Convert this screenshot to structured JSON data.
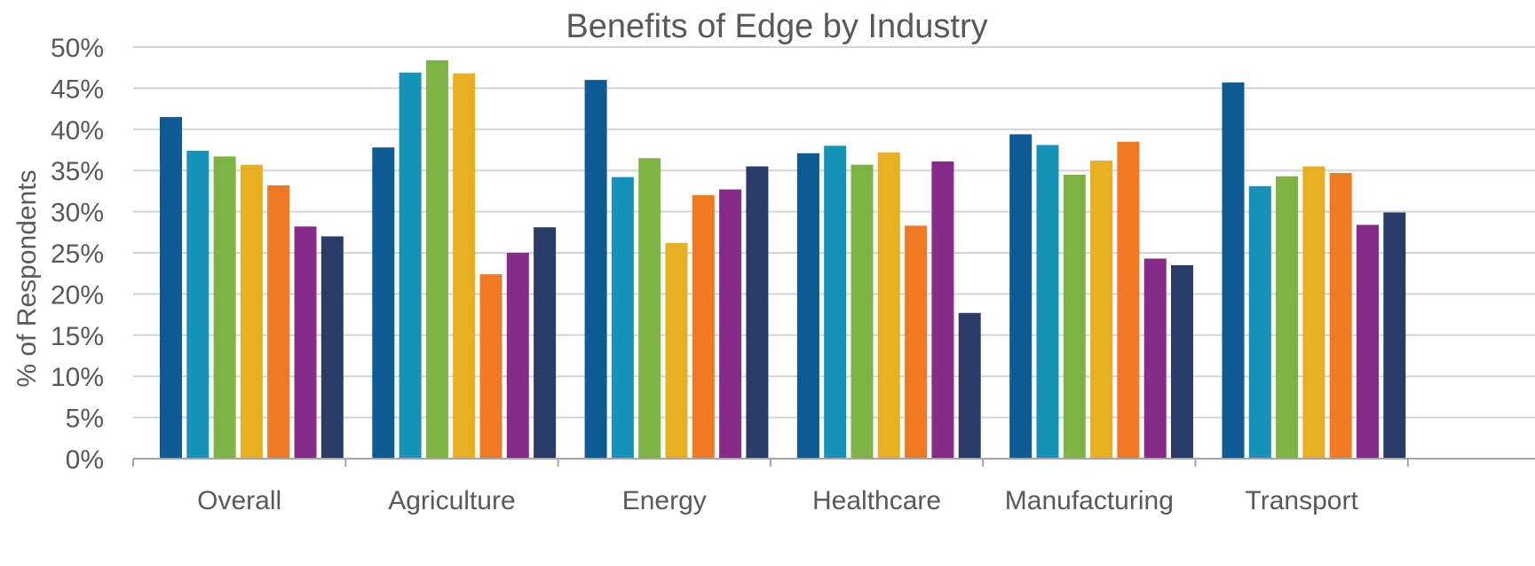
{
  "chart_data": {
    "type": "bar",
    "title": "Benefits of Edge by Industry",
    "xlabel": "",
    "ylabel": "% of Respondents",
    "ylim": [
      0,
      50
    ],
    "y_ticks": [
      "0%",
      "5%",
      "10%",
      "15%",
      "20%",
      "25%",
      "30%",
      "35%",
      "40%",
      "45%",
      "50%"
    ],
    "categories": [
      "Overall",
      "Agriculture",
      "Energy",
      "Healthcare",
      "Manufacturing",
      "Transport"
    ],
    "grid": true,
    "legend": "none",
    "series": [
      {
        "color": "#0e5a94",
        "values": [
          41.5,
          37.8,
          46.0,
          37.1,
          39.4,
          45.7
        ]
      },
      {
        "color": "#1593b8",
        "values": [
          37.4,
          46.9,
          34.2,
          38.0,
          38.1,
          33.1
        ]
      },
      {
        "color": "#7cb342",
        "values": [
          36.7,
          48.4,
          36.5,
          35.7,
          34.5,
          34.3
        ]
      },
      {
        "color": "#e8b020",
        "values": [
          35.7,
          46.8,
          26.2,
          37.2,
          36.2,
          35.5
        ]
      },
      {
        "color": "#f07a23",
        "values": [
          33.2,
          22.4,
          32.0,
          28.3,
          38.5,
          34.7
        ]
      },
      {
        "color": "#872a8a",
        "values": [
          28.2,
          25.0,
          32.7,
          36.1,
          24.3,
          28.4
        ]
      },
      {
        "color": "#2a3b66",
        "values": [
          27.0,
          28.1,
          35.5,
          17.7,
          23.5,
          29.9
        ]
      }
    ]
  }
}
